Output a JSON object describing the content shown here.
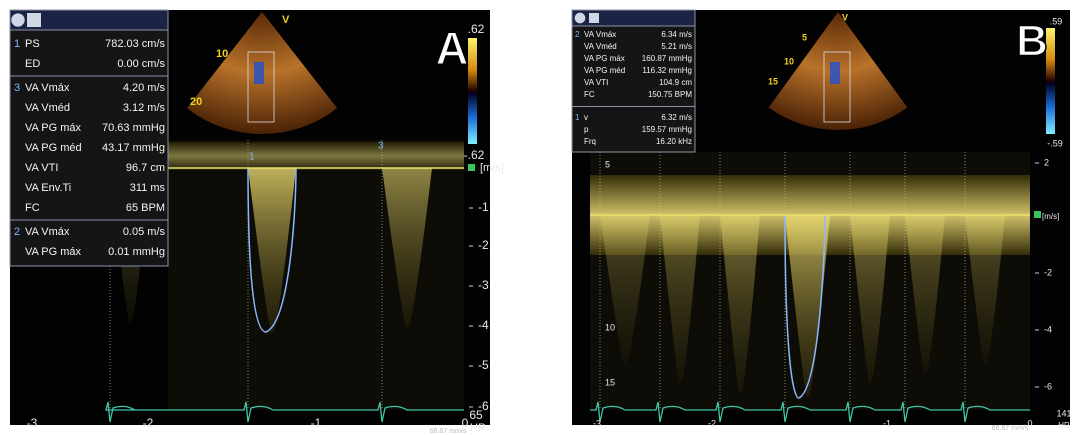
{
  "panels": [
    {
      "letter": "A",
      "groups": [
        {
          "id": "1",
          "rows": [
            [
              "PS",
              "782.03 cm/s"
            ],
            [
              "ED",
              "0.00 cm/s"
            ]
          ]
        },
        {
          "id": "3",
          "rows": [
            [
              "VA Vmáx",
              "4.20 m/s"
            ],
            [
              "VA Vméd",
              "3.12 m/s"
            ],
            [
              "VA PG máx",
              "70.63 mmHg"
            ],
            [
              "VA PG méd",
              "43.17 mmHg"
            ],
            [
              "VA VTI",
              "96.7 cm"
            ],
            [
              "VA Env.Ti",
              "311 ms"
            ],
            [
              "FC",
              "65 BPM"
            ]
          ]
        },
        {
          "id": "2",
          "rows": [
            [
              "VA Vmáx",
              "0.05 m/s"
            ],
            [
              "VA PG máx",
              "0.01 mmHg"
            ]
          ]
        }
      ],
      "sector_labels": [
        "V",
        "10",
        "20"
      ],
      "color_scale": {
        "max": ".62",
        "min": "-.62"
      },
      "unit": "[m/s]",
      "velocity_ticks": [
        "-1",
        "-2",
        "-3",
        "-4",
        "-5",
        "-6"
      ],
      "side_ticks": [],
      "cursor_labels": [
        "1",
        "3"
      ],
      "time_ticks": [
        "-3",
        "-2",
        "-1",
        "0"
      ],
      "heart_rate": "65",
      "heart_rate_unit": "HR",
      "sweep": "66.67 mm/s"
    },
    {
      "letter": "B",
      "groups": [
        {
          "id": "2",
          "rows": [
            [
              "VA Vmáx",
              "6.34 m/s"
            ],
            [
              "VA Vméd",
              "5.21 m/s"
            ],
            [
              "VA PG máx",
              "160.87 mmHg"
            ],
            [
              "VA PG méd",
              "116.32 mmHg"
            ],
            [
              "VA VTI",
              "104.9 cm"
            ],
            [
              "FC",
              "150.75 BPM"
            ]
          ]
        },
        {
          "id": "1",
          "rows": [
            [
              "v",
              "6.32 m/s"
            ],
            [
              "p",
              "159.57 mmHg"
            ],
            [
              "Frq",
              "16.20 kHz"
            ]
          ]
        }
      ],
      "sector_labels": [
        "V",
        "5",
        "10",
        "15"
      ],
      "color_scale": {
        "max": ".59",
        "min": "-.59"
      },
      "unit": "[m/s]",
      "velocity_ticks": [
        "2",
        "-2",
        "-4",
        "-6"
      ],
      "side_ticks": [
        "5",
        "10",
        "15"
      ],
      "cursor_labels": [],
      "time_ticks": [
        "-3",
        "-2",
        "-1",
        "0"
      ],
      "heart_rate": "141",
      "heart_rate_unit": "HR",
      "sweep": "66.67 mm/s"
    }
  ]
}
